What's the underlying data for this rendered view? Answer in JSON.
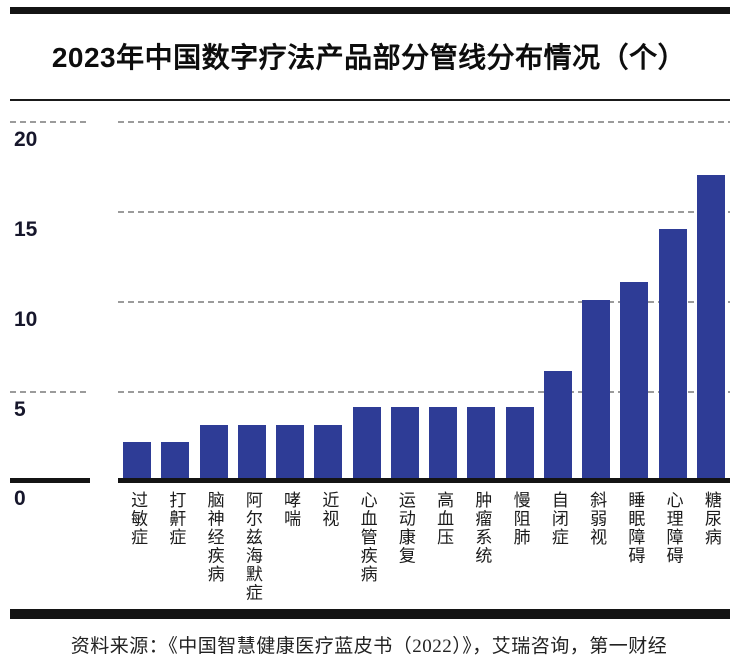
{
  "title": "2023年中国数字疗法产品部分管线分布情况（个）",
  "source_note": "资料来源：《中国智慧健康医疗蓝皮书（2022）》，艾瑞咨询，第一财经",
  "colors": {
    "bar": "#2e3c96",
    "frame": "#141414",
    "grid": "#9b9b9b",
    "text": "#111111"
  },
  "chart_data": {
    "type": "bar",
    "title": "2023年中国数字疗法产品部分管线分布情况（个）",
    "categories": [
      "过敏症",
      "打鼾症",
      "脑神经疾病",
      "阿尔兹海默症",
      "哮喘",
      "近视",
      "心血管疾病",
      "运动康复",
      "高血压",
      "肿瘤系统",
      "慢阻肺",
      "自闭症",
      "斜弱视",
      "睡眠障碍",
      "心理障碍",
      "糖尿病"
    ],
    "values": [
      2,
      2,
      3,
      3,
      3,
      3,
      4,
      4,
      4,
      4,
      4,
      6,
      10,
      11,
      14,
      17
    ],
    "xlabel": "",
    "ylabel": "",
    "ylim": [
      0,
      20
    ],
    "yticks": [
      0,
      5,
      10,
      15,
      20
    ],
    "grid": "dashed-horizontal",
    "legend": "none",
    "bar_color": "#2e3c96",
    "orientation": "vertical"
  }
}
